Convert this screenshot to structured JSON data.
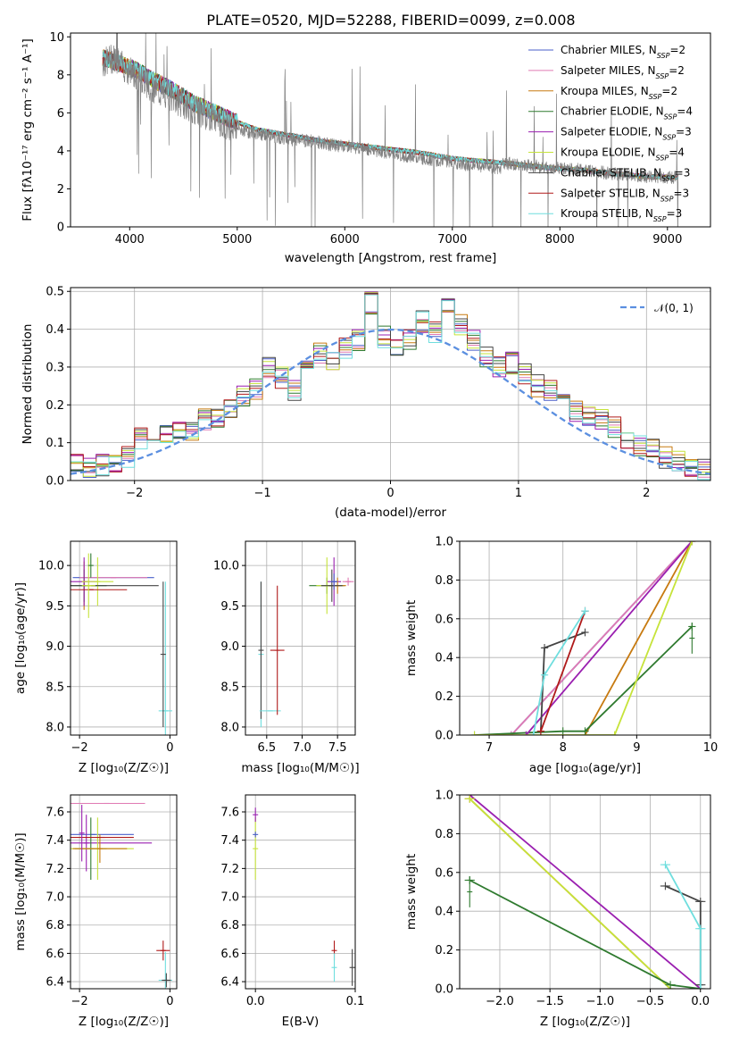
{
  "title": "PLATE=0520, MJD=52288, FIBERID=0099, z=0.008",
  "series_colors": {
    "Chabrier MILES": "#4a5fc9",
    "Salpeter MILES": "#e07ab4",
    "Kroupa MILES": "#c77a10",
    "Chabrier ELODIE": "#2f7a2f",
    "Salpeter ELODIE": "#9a1fb0",
    "Kroupa ELODIE": "#c6e33a",
    "Chabrier STELIB": "#444444",
    "Salpeter STELIB": "#b01a1a",
    "Kroupa STELIB": "#6fdede"
  },
  "chart_data": [
    {
      "id": "spectrum",
      "type": "line",
      "title": "PLATE=0520, MJD=52288, FIBERID=0099, z=0.008",
      "xlabel": "wavelength [Angstrom, rest frame]",
      "ylabel": "Flux [fλ10⁻¹⁷ erg cm⁻² s⁻¹ A⁻¹]",
      "xlim": [
        3450,
        9400
      ],
      "ylim": [
        0,
        10.2
      ],
      "xticks": [
        "4000",
        "5000",
        "6000",
        "7000",
        "8000",
        "9000"
      ],
      "yticks": [
        "0",
        "2",
        "4",
        "6",
        "8",
        "10"
      ],
      "grid": false,
      "legend_position": "top-right",
      "legend": [
        {
          "name": "Chabrier MILES",
          "nssp": "2"
        },
        {
          "name": "Salpeter MILES",
          "nssp": "2"
        },
        {
          "name": "Kroupa MILES",
          "nssp": "2"
        },
        {
          "name": "Chabrier ELODIE",
          "nssp": "4"
        },
        {
          "name": "Salpeter ELODIE",
          "nssp": "3"
        },
        {
          "name": "Kroupa ELODIE",
          "nssp": "4"
        },
        {
          "name": "Chabrier STELIB",
          "nssp": "3"
        },
        {
          "name": "Salpeter STELIB",
          "nssp": "3"
        },
        {
          "name": "Kroupa STELIB",
          "nssp": "3"
        }
      ],
      "data_curve": {
        "color": "#808080",
        "x": [
          3750,
          3850,
          3950,
          4050,
          4150,
          4300,
          4500,
          4700,
          4900,
          5100,
          5300,
          5500,
          5700,
          5900,
          6100,
          6300,
          6500,
          6700,
          6900,
          7100,
          7300,
          7450
        ],
        "y": [
          8.6,
          8.9,
          8.4,
          8.0,
          7.6,
          7.0,
          6.5,
          5.9,
          5.4,
          5.0,
          4.8,
          4.6,
          4.5,
          4.3,
          4.2,
          4.0,
          3.8,
          3.6,
          3.5,
          3.3,
          3.2,
          3.1
        ]
      },
      "model_curve": {
        "x": [
          3750,
          3900,
          4050,
          4200,
          4400,
          4600,
          4800,
          5000,
          5200,
          5500,
          5800,
          6100,
          6400,
          6700,
          7000,
          7300,
          7600,
          7900,
          8200,
          8500,
          8800,
          9100
        ],
        "y": [
          8.9,
          8.6,
          8.3,
          7.8,
          7.2,
          6.5,
          6.0,
          5.5,
          5.1,
          4.8,
          4.5,
          4.3,
          4.1,
          3.9,
          3.6,
          3.45,
          3.3,
          3.1,
          3.0,
          2.8,
          2.65,
          2.6
        ]
      }
    },
    {
      "id": "residuals",
      "type": "area",
      "xlabel": "(data-model)/error",
      "ylabel": "Normed distribution",
      "xlim": [
        -2.5,
        2.5
      ],
      "ylim": [
        0,
        0.51
      ],
      "xticks": [
        "−2",
        "−1",
        "0",
        "1",
        "2"
      ],
      "yticks": [
        "0.0",
        "0.1",
        "0.2",
        "0.3",
        "0.4",
        "0.5"
      ],
      "grid": true,
      "legend_position": "top-right",
      "legend_label": "𝒩(0, 1)",
      "bin_width": 0.1,
      "hist_values": [
        0.04,
        0.03,
        0.04,
        0.05,
        0.06,
        0.11,
        0.09,
        0.12,
        0.14,
        0.13,
        0.16,
        0.17,
        0.19,
        0.22,
        0.24,
        0.3,
        0.27,
        0.24,
        0.29,
        0.34,
        0.32,
        0.35,
        0.37,
        0.47,
        0.38,
        0.35,
        0.37,
        0.42,
        0.39,
        0.46,
        0.41,
        0.37,
        0.33,
        0.3,
        0.31,
        0.28,
        0.25,
        0.24,
        0.22,
        0.18,
        0.17,
        0.16,
        0.14,
        0.11,
        0.09,
        0.08,
        0.06,
        0.05,
        0.04,
        0.03
      ]
    },
    {
      "id": "age-vs-Z",
      "type": "scatter",
      "xlabel": "Z [log₁₀(Z/Z☉)]",
      "ylabel": "age  [log₁₀(age/yr)]",
      "xlim": [
        -2.2,
        0.15
      ],
      "ylim": [
        7.9,
        10.3
      ],
      "xticks": [
        "−2",
        "0"
      ],
      "yticks": [
        "8.0",
        "8.5",
        "9.0",
        "9.5",
        "10.0"
      ],
      "grid": true
    },
    {
      "id": "age-vs-mass",
      "type": "scatter",
      "xlabel": "mass [log₁₀(M/M☉)]",
      "ylabel": "",
      "xlim": [
        6.2,
        7.75
      ],
      "ylim": [
        7.9,
        10.3
      ],
      "xticks": [
        "6.5",
        "7.0",
        "7.5"
      ],
      "yticks": [
        "8.0",
        "8.5",
        "9.0",
        "9.5",
        "10.0"
      ],
      "grid": true
    },
    {
      "id": "massweight-vs-age",
      "type": "line",
      "xlabel": "age  [log₁₀(age/yr)]",
      "ylabel": "mass weight",
      "xlim": [
        6.6,
        10
      ],
      "ylim": [
        0,
        1
      ],
      "xticks": [
        "7",
        "8",
        "9",
        "10"
      ],
      "yticks": [
        "0.0",
        "0.2",
        "0.4",
        "0.6",
        "0.8",
        "1.0"
      ],
      "grid": true,
      "series": [
        {
          "name": "Chabrier MILES",
          "x": [
            7.3,
            9.75
          ],
          "y": [
            0.0,
            1.0
          ]
        },
        {
          "name": "Salpeter MILES",
          "x": [
            7.3,
            9.75
          ],
          "y": [
            0.0,
            1.0
          ]
        },
        {
          "name": "Kroupa MILES",
          "x": [
            8.3,
            9.75
          ],
          "y": [
            0.0,
            1.0
          ]
        },
        {
          "name": "Chabrier ELODIE",
          "x": [
            6.8,
            8.0,
            8.3,
            9.75
          ],
          "y": [
            0.0,
            0.02,
            0.02,
            0.56
          ]
        },
        {
          "name": "Salpeter ELODIE",
          "x": [
            7.5,
            9.75
          ],
          "y": [
            0.0,
            1.0
          ]
        },
        {
          "name": "Kroupa ELODIE",
          "x": [
            6.8,
            8.7,
            9.75
          ],
          "y": [
            0.0,
            0.0,
            1.0
          ]
        },
        {
          "name": "Chabrier STELIB",
          "x": [
            7.7,
            7.75,
            8.3
          ],
          "y": [
            0.02,
            0.45,
            0.53
          ]
        },
        {
          "name": "Salpeter STELIB",
          "x": [
            7.7,
            8.3
          ],
          "y": [
            0.02,
            0.64
          ]
        },
        {
          "name": "Kroupa STELIB",
          "x": [
            7.6,
            7.75,
            8.3
          ],
          "y": [
            0.0,
            0.31,
            0.64
          ]
        }
      ]
    },
    {
      "id": "mass-vs-Z",
      "type": "scatter",
      "xlabel": "Z [log₁₀(Z/Z☉)]",
      "ylabel": "mass [log₁₀(M/M☉)]",
      "xlim": [
        -2.2,
        0.15
      ],
      "ylim": [
        6.35,
        7.72
      ],
      "xticks": [
        "−2",
        "0"
      ],
      "yticks": [
        "6.4",
        "6.6",
        "6.8",
        "7.0",
        "7.2",
        "7.4",
        "7.6"
      ],
      "grid": true
    },
    {
      "id": "mass-vs-EBV",
      "type": "scatter",
      "xlabel": "E(B-V)",
      "ylabel": "",
      "xlim": [
        -0.01,
        0.1
      ],
      "ylim": [
        6.35,
        7.72
      ],
      "xticks": [
        "0.0",
        "0.1"
      ],
      "yticks": [
        "6.4",
        "6.6",
        "6.8",
        "7.0",
        "7.2",
        "7.4",
        "7.6"
      ],
      "grid": true
    },
    {
      "id": "massweight-vs-Z",
      "type": "line",
      "xlabel": "Z [log₁₀(Z/Z☉)]",
      "ylabel": "mass weight",
      "xlim": [
        -2.4,
        0.1
      ],
      "ylim": [
        0,
        1
      ],
      "xticks": [
        "−2.0",
        "−1.5",
        "−1.0",
        "−0.5",
        "0.0"
      ],
      "yticks": [
        "0.0",
        "0.2",
        "0.4",
        "0.6",
        "0.8",
        "1.0"
      ],
      "grid": true,
      "series": [
        {
          "name": "Salpeter ELODIE",
          "x": [
            -2.3,
            0.0
          ],
          "y": [
            1.0,
            0.0
          ]
        },
        {
          "name": "Kroupa MILES",
          "x": [
            -2.3,
            -0.3
          ],
          "y": [
            0.98,
            0.0
          ]
        },
        {
          "name": "Kroupa ELODIE",
          "x": [
            -2.3,
            -0.3
          ],
          "y": [
            0.98,
            0.0
          ]
        },
        {
          "name": "Chabrier ELODIE",
          "x": [
            -2.3,
            -0.3,
            0.0
          ],
          "y": [
            0.56,
            0.02,
            0.0
          ]
        },
        {
          "name": "Chabrier STELIB",
          "x": [
            -0.35,
            0.0,
            0.0
          ],
          "y": [
            0.53,
            0.45,
            0.02
          ]
        },
        {
          "name": "Kroupa STELIB",
          "x": [
            -0.35,
            0.0,
            0.0
          ],
          "y": [
            0.64,
            0.31,
            0.0
          ]
        }
      ]
    }
  ]
}
